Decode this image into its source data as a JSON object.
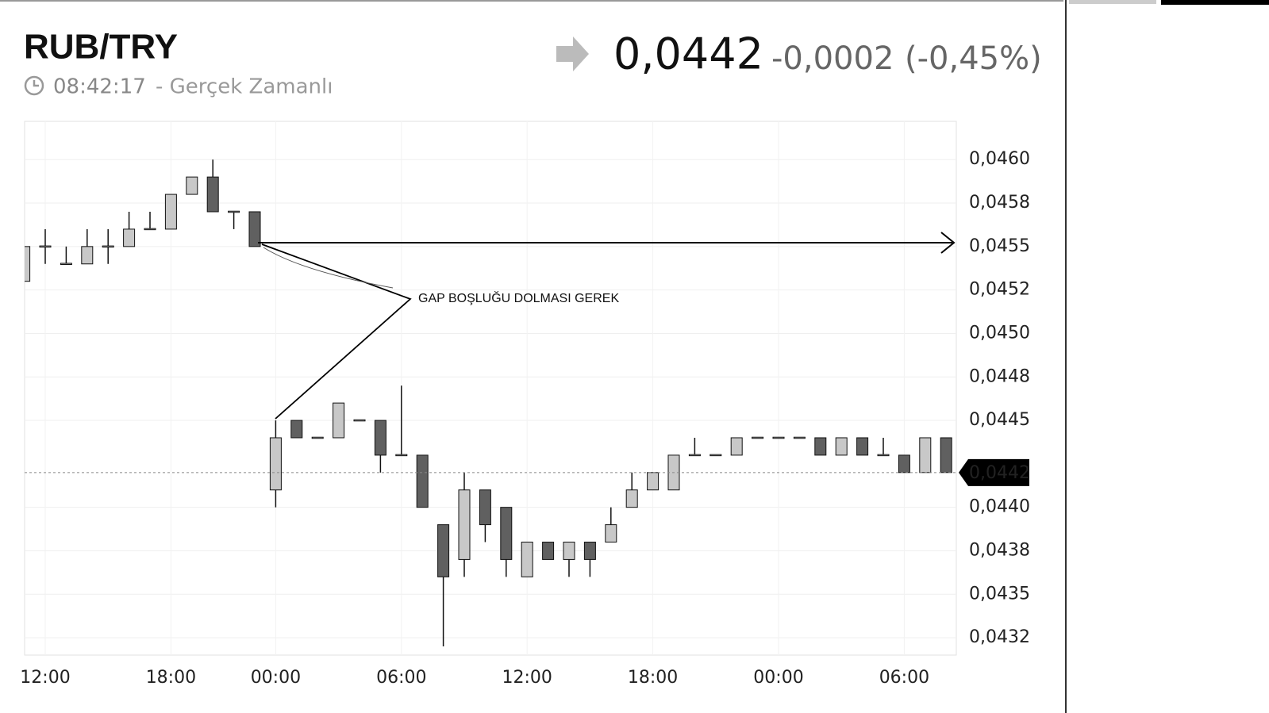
{
  "header": {
    "symbol": "RUB/TRY",
    "time": "08:42:17",
    "source": "- Gerçek Zamanlı",
    "price": "0,0442",
    "change": "-0,0002",
    "change_pct": "(-0,45%)"
  },
  "chart_data": {
    "type": "candlestick",
    "annotation": "GAP BOŞLUĞU DOLMASI GEREK",
    "categories": [
      null,
      "12:00",
      null,
      null,
      null,
      null,
      null,
      "18:00",
      null,
      null,
      null,
      null,
      "00:00",
      null,
      null,
      null,
      null,
      null,
      "06:00",
      null,
      null,
      null,
      null,
      null,
      "12:00",
      null,
      null,
      null,
      null,
      null,
      "18:00",
      null,
      null,
      null,
      null,
      null,
      "00:00",
      null,
      null,
      null,
      null,
      null,
      "06:00",
      null,
      null
    ],
    "open": [
      0.0453,
      0.0455,
      0.0454,
      0.0454,
      0.0455,
      0.0455,
      0.0456,
      0.0456,
      0.0458,
      0.0459,
      0.0457,
      0.0457,
      0.0441,
      0.0445,
      0.0444,
      0.0444,
      0.0445,
      0.0445,
      0.0443,
      0.0443,
      0.0439,
      0.0437,
      0.0441,
      0.044,
      0.0436,
      0.0438,
      0.0437,
      0.0438,
      0.0438,
      0.044,
      0.0441,
      0.0441,
      0.0443,
      0.0443,
      0.0443,
      0.0444,
      0.0444,
      0.0444,
      0.0444,
      0.0443,
      0.0444,
      0.0443,
      0.0443,
      0.0442,
      0.0444
    ],
    "high": [
      0.0455,
      0.0456,
      0.0455,
      0.0456,
      0.0456,
      0.0457,
      0.0457,
      0.0458,
      0.0459,
      0.046,
      0.0457,
      0.0457,
      0.0445,
      0.0445,
      0.0444,
      0.0446,
      0.0445,
      0.0445,
      0.0447,
      0.0443,
      0.0439,
      0.0442,
      0.0441,
      0.044,
      0.0438,
      0.0438,
      0.0438,
      0.0438,
      0.044,
      0.0442,
      0.0442,
      0.0443,
      0.0444,
      0.0443,
      0.0444,
      0.0444,
      0.0444,
      0.0444,
      0.0444,
      0.0444,
      0.0444,
      0.0444,
      0.0443,
      0.0444,
      0.0444
    ],
    "low": [
      0.0453,
      0.0454,
      0.0454,
      0.0454,
      0.0454,
      0.0455,
      0.0456,
      0.0456,
      0.0458,
      0.0457,
      0.0456,
      0.0455,
      0.044,
      0.0444,
      0.0444,
      0.0444,
      0.0445,
      0.0442,
      0.0443,
      0.044,
      0.0432,
      0.0436,
      0.0438,
      0.0436,
      0.0436,
      0.0437,
      0.0436,
      0.0436,
      0.0438,
      0.044,
      0.0441,
      0.0441,
      0.0443,
      0.0443,
      0.0443,
      0.0444,
      0.0444,
      0.0444,
      0.0443,
      0.0443,
      0.0443,
      0.0443,
      0.0442,
      0.0442,
      0.0442
    ],
    "close": [
      0.0455,
      0.0455,
      0.0454,
      0.0455,
      0.0455,
      0.0456,
      0.0456,
      0.0458,
      0.0459,
      0.0457,
      0.0457,
      0.0455,
      0.0444,
      0.0444,
      0.0444,
      0.0446,
      0.0445,
      0.0443,
      0.0443,
      0.044,
      0.0436,
      0.0441,
      0.0439,
      0.0437,
      0.0438,
      0.0437,
      0.0438,
      0.0437,
      0.0439,
      0.0441,
      0.0442,
      0.0443,
      0.0443,
      0.0443,
      0.0444,
      0.0444,
      0.0444,
      0.0444,
      0.0443,
      0.0444,
      0.0443,
      0.0443,
      0.0442,
      0.0444,
      0.0442
    ],
    "up_color": "#c8c8c8",
    "down_color": "#606060",
    "last_price": {
      "value": 0.0442,
      "label": "0,0442"
    },
    "ylim": [
      0.04315,
      0.04622
    ],
    "yticks": [
      {
        "value": 0.046,
        "label": "0,0460"
      },
      {
        "value": 0.04575,
        "label": "0,0458"
      },
      {
        "value": 0.0455,
        "label": "0,0455"
      },
      {
        "value": 0.04525,
        "label": "0,0452"
      },
      {
        "value": 0.045,
        "label": "0,0450"
      },
      {
        "value": 0.04475,
        "label": "0,0448"
      },
      {
        "value": 0.0445,
        "label": "0,0445"
      },
      {
        "value": 0.044,
        "label": "0,0440"
      },
      {
        "value": 0.04375,
        "label": "0,0438"
      },
      {
        "value": 0.0435,
        "label": "0,0435"
      },
      {
        "value": 0.04325,
        "label": "0,0432"
      }
    ],
    "grid": true
  }
}
